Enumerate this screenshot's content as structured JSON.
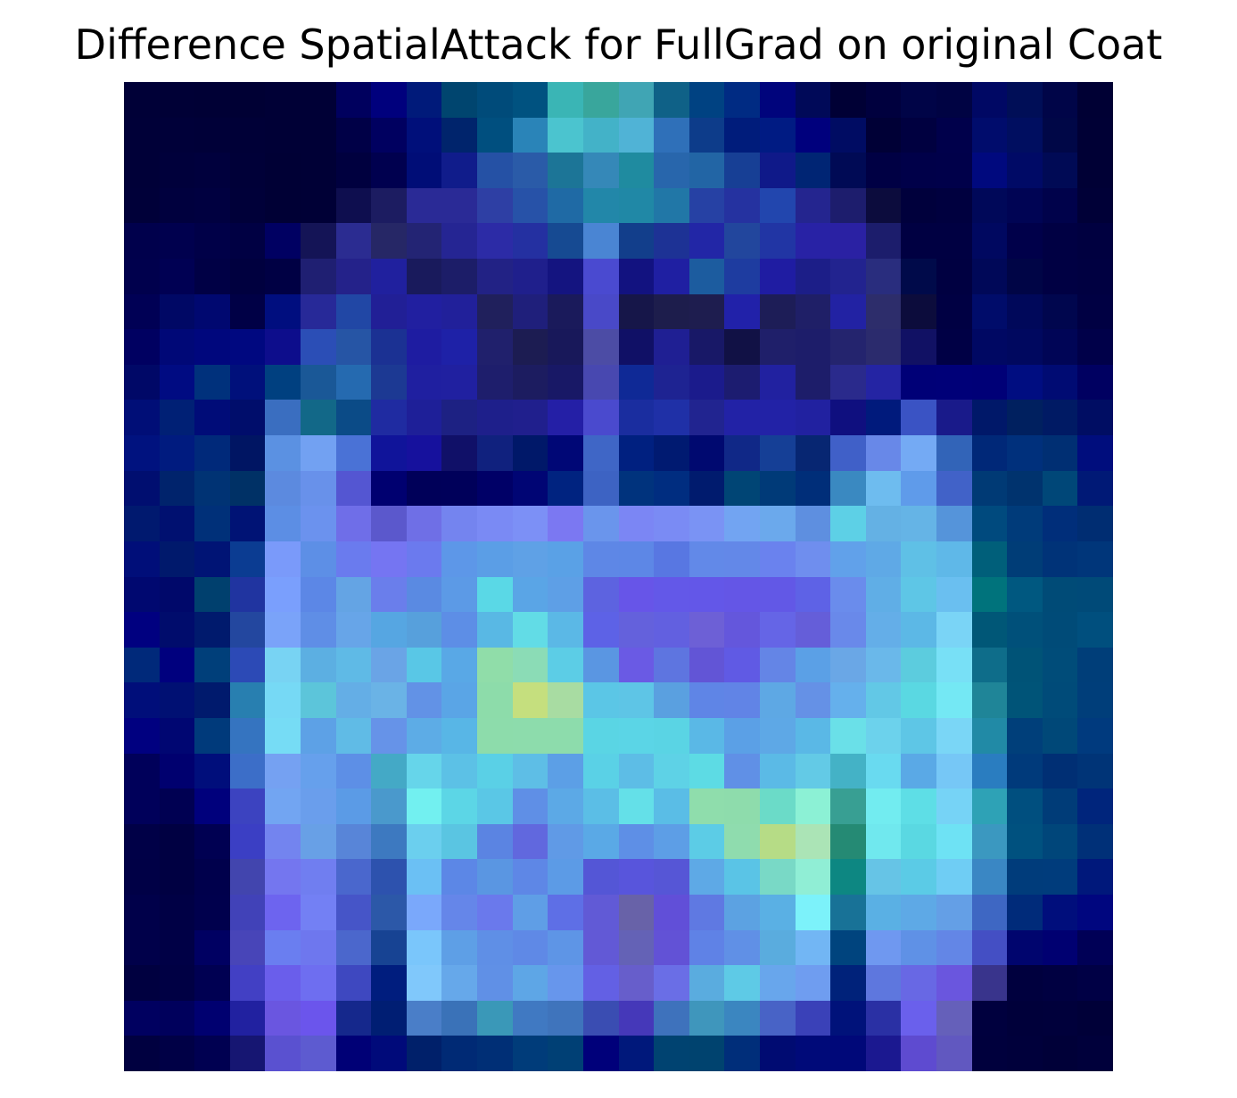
{
  "title": "Difference SpatialAttack for FullGrad on original Coat",
  "image": {
    "description_colors": {
      "background": "#ffffff",
      "dark": "#00003a",
      "mid_blue": "#2b2f9b",
      "cyan": "#5ad8e6",
      "yellow_green": "#c0dd7a"
    },
    "grid_size": 28,
    "pixels": [
      [
        "#000037",
        "#000036",
        "#000035",
        "#000034",
        "#000036",
        "#000036",
        "#00005e",
        "#00007d",
        "#001a7a",
        "#00456f",
        "#004b7a",
        "#005280",
        "#3ab5b5",
        "#39a69c",
        "#40a5b4",
        "#0f6187",
        "#004282",
        "#002b83",
        "#00047c",
        "#000958",
        "#000035",
        "#00003e",
        "#000447",
        "#000343",
        "#000864",
        "#000e57",
        "#000548",
        "#000034"
      ],
      [
        "#000038",
        "#000039",
        "#000038",
        "#000037",
        "#000036",
        "#000036",
        "#000047",
        "#000060",
        "#000f7a",
        "#00246c",
        "#004f7f",
        "#2a84b8",
        "#4bc4cf",
        "#43b2c8",
        "#50b3d6",
        "#2f70b9",
        "#0d3c8a",
        "#001c7b",
        "#001b83",
        "#00007d",
        "#000c63",
        "#000036",
        "#000040",
        "#00004b",
        "#000c6c",
        "#000e60",
        "#000747",
        "#000035"
      ],
      [
        "#000038",
        "#00003b",
        "#00003d",
        "#000038",
        "#000035",
        "#000036",
        "#00003f",
        "#00004f",
        "#000d77",
        "#101c8b",
        "#2551a5",
        "#2a5ba8",
        "#1c7597",
        "#3588b8",
        "#1f8ba0",
        "#2866ac",
        "#2265a5",
        "#173f95",
        "#0f1989",
        "#002574",
        "#000a55",
        "#000044",
        "#000049",
        "#00004a",
        "#00097e",
        "#000a66",
        "#000a55",
        "#000035"
      ],
      [
        "#000039",
        "#00003e",
        "#000040",
        "#000039",
        "#000035",
        "#000036",
        "#0e0e4f",
        "#1c1c61",
        "#2a2a96",
        "#2a2a96",
        "#2e3fa4",
        "#2752a8",
        "#1f6aa5",
        "#2287a9",
        "#2088a6",
        "#2177a7",
        "#2641a4",
        "#2532a0",
        "#2246ae",
        "#24258f",
        "#1d1d6d",
        "#0c0c3d",
        "#00003c",
        "#00003f",
        "#000859",
        "#000454",
        "#00024b",
        "#000037"
      ],
      [
        "#00004c",
        "#00004e",
        "#000048",
        "#000043",
        "#000062",
        "#141456",
        "#2b2c91",
        "#262766",
        "#232474",
        "#252593",
        "#2c2ba6",
        "#2430a1",
        "#164a92",
        "#4a85d3",
        "#123e8b",
        "#1d3295",
        "#2226a6",
        "#22469d",
        "#2135a4",
        "#2822a5",
        "#2a21a3",
        "#1c1d6c",
        "#000042",
        "#000042",
        "#000860",
        "#00004a",
        "#000043",
        "#000040"
      ],
      [
        "#00004d",
        "#000053",
        "#000045",
        "#00003f",
        "#000044",
        "#1f1f72",
        "#24228a",
        "#20209e",
        "#191a5c",
        "#1c1d68",
        "#222285",
        "#1f1f8c",
        "#141480",
        "#4a4ad0",
        "#121280",
        "#1f1fa2",
        "#1c5c9f",
        "#1e3ca0",
        "#1f1ca2",
        "#1c1e88",
        "#22238f",
        "#292d7e",
        "#000a4a",
        "#000041",
        "#000858",
        "#000546",
        "#000043",
        "#000041"
      ],
      [
        "#000055",
        "#000865",
        "#000870",
        "#000046",
        "#000e7f",
        "#272998",
        "#2147a5",
        "#211f96",
        "#211fa0",
        "#21209a",
        "#20205c",
        "#1f1f7b",
        "#1a1a5b",
        "#4949c8",
        "#161649",
        "#1d1d4c",
        "#1e1d4f",
        "#2121a9",
        "#1d1d57",
        "#1f1f67",
        "#2222a3",
        "#2d2d6b",
        "#0c0c3c",
        "#000043",
        "#000c6a",
        "#00085a",
        "#00064e",
        "#000043"
      ],
      [
        "#000061",
        "#000877",
        "#00077d",
        "#000880",
        "#0d0d8c",
        "#2b4eb6",
        "#2655a5",
        "#1b3193",
        "#1e1ca1",
        "#1e21a7",
        "#20206c",
        "#1c1c52",
        "#18185a",
        "#4c4ca5",
        "#101066",
        "#1f1f93",
        "#181867",
        "#111145",
        "#1f1f6a",
        "#1d1d6a",
        "#24246e",
        "#2b2b6d",
        "#111164",
        "#000045",
        "#000863",
        "#00085f",
        "#000556",
        "#000049"
      ],
      [
        "#000867",
        "#000b82",
        "#00317c",
        "#00107b",
        "#004080",
        "#1a5897",
        "#256ab0",
        "#1c3993",
        "#1f1fa0",
        "#2020a0",
        "#1e1e6c",
        "#1c1c60",
        "#181866",
        "#4848b0",
        "#0f2996",
        "#1e2392",
        "#1b1b8c",
        "#1c1c70",
        "#2121a0",
        "#1d1d6a",
        "#2a2a8c",
        "#2424a3",
        "#000077",
        "#000078",
        "#000077",
        "#000d81",
        "#000b73",
        "#000061"
      ],
      [
        "#000e77",
        "#002075",
        "#000c78",
        "#000d6b",
        "#3a6ec0",
        "#126888",
        "#0b4b87",
        "#1f2ba1",
        "#1e1f98",
        "#1d2183",
        "#1e1f8b",
        "#201f8d",
        "#241fa6",
        "#4a4ace",
        "#1a2d9f",
        "#1f30a7",
        "#212490",
        "#2222a6",
        "#2222a6",
        "#2121a0",
        "#0f0f7f",
        "#001a7c",
        "#3a53c4",
        "#191a8a",
        "#001869",
        "#00205f",
        "#001a64",
        "#000d63"
      ],
      [
        "#00127f",
        "#001b7f",
        "#00297a",
        "#001563",
        "#5b91e2",
        "#72a1f2",
        "#4a72d6",
        "#10149a",
        "#16119d",
        "#101068",
        "#10217e",
        "#001869",
        "#000776",
        "#3f66c6",
        "#002080",
        "#001a71",
        "#000970",
        "#102887",
        "#153f96",
        "#072672",
        "#4060c8",
        "#6888e8",
        "#74aaf4",
        "#3264b8",
        "#002878",
        "#00307c",
        "#002f73",
        "#000d7d"
      ],
      [
        "#000e70",
        "#00236c",
        "#003374",
        "#003166",
        "#5c8adf",
        "#6891ea",
        "#5456d2",
        "#000070",
        "#000059",
        "#00005a",
        "#000067",
        "#000574",
        "#002380",
        "#3d63c3",
        "#00337d",
        "#002d80",
        "#001b6e",
        "#004575",
        "#003a78",
        "#002e79",
        "#3a89c1",
        "#6ebcef",
        "#5f9bea",
        "#4162c8",
        "#003a75",
        "#00336e",
        "#004778",
        "#001976"
      ],
      [
        "#00196f",
        "#001070",
        "#003079",
        "#001375",
        "#5c8ee4",
        "#6b92ee",
        "#6f6ee8",
        "#5b58cc",
        "#6f6fe6",
        "#7484ef",
        "#7a8af4",
        "#7c90f6",
        "#7b78f2",
        "#6a95ec",
        "#7b86f4",
        "#7a8bf4",
        "#7a93f4",
        "#72a4f2",
        "#6ba9ec",
        "#5e8fe0",
        "#5dd0e6",
        "#64b1e4",
        "#65b4e6",
        "#5594da",
        "#004a7e",
        "#003b7a",
        "#002e7a",
        "#002d72"
      ],
      [
        "#000e79",
        "#00196c",
        "#001475",
        "#0b3c92",
        "#7a9afa",
        "#5d8fe6",
        "#6a7bee",
        "#7575f2",
        "#6b7aee",
        "#5d97e8",
        "#5b9ee6",
        "#5fa1e6",
        "#5aa1e6",
        "#5e87e6",
        "#5d87e6",
        "#5877e2",
        "#6289e8",
        "#6388e8",
        "#6a82ee",
        "#6f8eee",
        "#61a1ea",
        "#5fa9e6",
        "#5fc0e6",
        "#5fb8e8",
        "#005f7a",
        "#003d77",
        "#003378",
        "#00367a"
      ],
      [
        "#000870",
        "#00086a",
        "#00406e",
        "#2034a0",
        "#7a9ffd",
        "#5c87e6",
        "#64a4e4",
        "#6a7eeb",
        "#5a8ae2",
        "#5c9ae6",
        "#5ad8e6",
        "#5aa5e6",
        "#5e9fe6",
        "#5d63e0",
        "#6755e8",
        "#6358e8",
        "#6357e8",
        "#6456e6",
        "#6258e6",
        "#5e62e6",
        "#6a8cec",
        "#60aee6",
        "#5ec6e6",
        "#6abff0",
        "#00737c",
        "#005880",
        "#004b77",
        "#004a78"
      ],
      [
        "#000080",
        "#000c6c",
        "#001a6d",
        "#23479f",
        "#7aa3f9",
        "#5f8ee6",
        "#67a5e8",
        "#56a6e2",
        "#57a0dc",
        "#5d8ee6",
        "#59b8e4",
        "#62dce6",
        "#5bb8e6",
        "#5d62e6",
        "#6461dc",
        "#6260e0",
        "#6d60d6",
        "#6457dc",
        "#6565e6",
        "#655ed9",
        "#6989ea",
        "#64aee8",
        "#5cb8e6",
        "#7ad4f6",
        "#005777",
        "#00507a",
        "#004b78",
        "#004f7e"
      ],
      [
        "#00297a",
        "#00007e",
        "#003f7a",
        "#2c4ab6",
        "#78d3f3",
        "#5cafe2",
        "#5fbae6",
        "#6aa4e6",
        "#59c7e6",
        "#59a8e6",
        "#90dda9",
        "#8bdcb6",
        "#5ccde6",
        "#5a96e2",
        "#6a5ae4",
        "#5e75e0",
        "#6255d6",
        "#605ae4",
        "#6485e6",
        "#5ba0e6",
        "#6aa7e6",
        "#6ab8ea",
        "#5cccde",
        "#78e0f6",
        "#0e6d8a",
        "#005377",
        "#004c79",
        "#003e79"
      ],
      [
        "#000e7a",
        "#001073",
        "#001a6d",
        "#287fb0",
        "#76d9f5",
        "#5cc5da",
        "#64aee6",
        "#6ab3e6",
        "#6292e6",
        "#5aa5e6",
        "#8ddcaa",
        "#c5df7e",
        "#a8dca2",
        "#5bc6e6",
        "#5ec5e6",
        "#5aa0e0",
        "#5f85e6",
        "#6184e6",
        "#5ea8e4",
        "#6591e6",
        "#65b0ec",
        "#62c8e6",
        "#5ad8e2",
        "#74e8f4",
        "#1f8598",
        "#005478",
        "#004b79",
        "#003e7a"
      ],
      [
        "#000080",
        "#000672",
        "#003a7b",
        "#3574c0",
        "#76dcf5",
        "#5da1e6",
        "#60bbe6",
        "#6693e8",
        "#5dace6",
        "#58b6e6",
        "#8ddcab",
        "#8ddcac",
        "#8ddcac",
        "#5ad5e4",
        "#5bd5e6",
        "#5ad4e4",
        "#5ab8e6",
        "#5ba0e6",
        "#5ea8e6",
        "#5ab8e6",
        "#6ae0e8",
        "#6cd2ec",
        "#5ec6e6",
        "#7ad6f6",
        "#218aa6",
        "#003f7a",
        "#004878",
        "#003a7e"
      ],
      [
        "#00005a",
        "#00006f",
        "#000e7b",
        "#3c6ec8",
        "#75a1f2",
        "#66a0ec",
        "#5d8fe6",
        "#44a9c6",
        "#66d5ea",
        "#5cc1e6",
        "#5ad0e6",
        "#5ebee6",
        "#5c9fe6",
        "#5ad1e6",
        "#5dbde6",
        "#5ed2e6",
        "#5ddbe4",
        "#6090e6",
        "#5bbae6",
        "#63cae6",
        "#44b2c6",
        "#69daf0",
        "#5aa9e6",
        "#76c7f6",
        "#2a7dc0",
        "#003a7b",
        "#002f74",
        "#003477"
      ],
      [
        "#00005a",
        "#000052",
        "#00007c",
        "#3c43c0",
        "#72a5f2",
        "#6a9eec",
        "#5b9be6",
        "#4a99cc",
        "#72f0f0",
        "#5cd6e6",
        "#5ac7e6",
        "#5f8fe6",
        "#5ca9e6",
        "#5bbee6",
        "#64e0e8",
        "#5abde6",
        "#8fddac",
        "#8edcac",
        "#6bdbc8",
        "#8cf1d5",
        "#389f93",
        "#72ecf0",
        "#5edee6",
        "#76d3f6",
        "#2ea2b6",
        "#004f7f",
        "#003c78",
        "#00257c"
      ],
      [
        "#000047",
        "#000042",
        "#000052",
        "#3b3fc4",
        "#7384ef",
        "#68a0e6",
        "#5885d8",
        "#3d79c0",
        "#6bcfee",
        "#5ac5e2",
        "#5b84e2",
        "#6168de",
        "#609ae6",
        "#5aa9e6",
        "#5e8fe6",
        "#5d9ee6",
        "#5ccce6",
        "#8fdcae",
        "#b6dc86",
        "#abe4b6",
        "#258a74",
        "#70e8ee",
        "#5ad8e2",
        "#6ee2f4",
        "#3b98c0",
        "#00517f",
        "#00467a",
        "#003078"
      ],
      [
        "#000046",
        "#000042",
        "#00004c",
        "#4245ae",
        "#7476ef",
        "#707ef0",
        "#4a67cd",
        "#2d52ae",
        "#6bc0f4",
        "#5c87e6",
        "#5a96e2",
        "#5e87e6",
        "#5c9be6",
        "#5456d6",
        "#5855dc",
        "#5656d6",
        "#5ea9e6",
        "#5ac4e6",
        "#79d9c6",
        "#90eed5",
        "#0d8782",
        "#66c4e6",
        "#5bcbe6",
        "#6fcdf4",
        "#3a87c4",
        "#003c7b",
        "#003c7c",
        "#00187b"
      ],
      [
        "#00004a",
        "#000045",
        "#00004d",
        "#4142b8",
        "#6d64ef",
        "#7380f4",
        "#4655c8",
        "#2c58a8",
        "#7aa8fb",
        "#6586e9",
        "#6a79ec",
        "#5f9ee6",
        "#5e6fe6",
        "#615ad6",
        "#6862a8",
        "#614fd8",
        "#5f79e2",
        "#5ca2e2",
        "#5ab0e4",
        "#7cf2fa",
        "#187297",
        "#5ab0e4",
        "#5ea9e6",
        "#649fe6",
        "#3e67c3",
        "#002b7a",
        "#000e7c",
        "#00067f"
      ],
      [
        "#00004a",
        "#000046",
        "#000062",
        "#4845b8",
        "#6a7ef0",
        "#6e77ee",
        "#4b67cc",
        "#174393",
        "#7ac6fb",
        "#5e9fe6",
        "#5f8fe6",
        "#5f89e6",
        "#5e95e6",
        "#6259d6",
        "#6462b6",
        "#6252d6",
        "#5f82e6",
        "#6090e6",
        "#5aacde",
        "#72b6f4",
        "#00447e",
        "#6f98f0",
        "#5f91e6",
        "#6386e6",
        "#444fc4",
        "#00056e",
        "#000071",
        "#000056"
      ],
      [
        "#000040",
        "#000044",
        "#000052",
        "#4240c4",
        "#6a5eeb",
        "#6e6ef0",
        "#3e48c0",
        "#001d7e",
        "#80c8fb",
        "#66a8ea",
        "#6090e6",
        "#5ea6e6",
        "#6796ec",
        "#6360e4",
        "#675ecb",
        "#6a6ee6",
        "#5aacdf",
        "#5ecae6",
        "#68a6ec",
        "#6f9df0",
        "#00227a",
        "#5e77de",
        "#6868e4",
        "#6a56de",
        "#39348c",
        "#00003e",
        "#000041",
        "#000045"
      ],
      [
        "#000060",
        "#00005c",
        "#000070",
        "#2121a0",
        "#6a56e0",
        "#6b55ec",
        "#15288c",
        "#001e73",
        "#4a7ec8",
        "#3a72b8",
        "#3a98b8",
        "#4079c2",
        "#3f74bc",
        "#3a4db2",
        "#4538b9",
        "#3e72bc",
        "#3f96bc",
        "#3b86c0",
        "#4863c6",
        "#3a41b8",
        "#00127a",
        "#2a30a4",
        "#6a60ec",
        "#6560ba",
        "#00003e",
        "#00003a",
        "#00003b",
        "#000038"
      ],
      [
        "#000040",
        "#000046",
        "#000051",
        "#161672",
        "#5a51d0",
        "#5d5bd0",
        "#000076",
        "#000a7a",
        "#00206a",
        "#002a75",
        "#002f76",
        "#003c7a",
        "#004075",
        "#00007a",
        "#00187b",
        "#004371",
        "#00436f",
        "#002e7a",
        "#000b72",
        "#000a79",
        "#000879",
        "#1b1890",
        "#5e4bd0",
        "#6158c0",
        "#00003d",
        "#00003b",
        "#000038",
        "#00003b"
      ]
    ]
  }
}
